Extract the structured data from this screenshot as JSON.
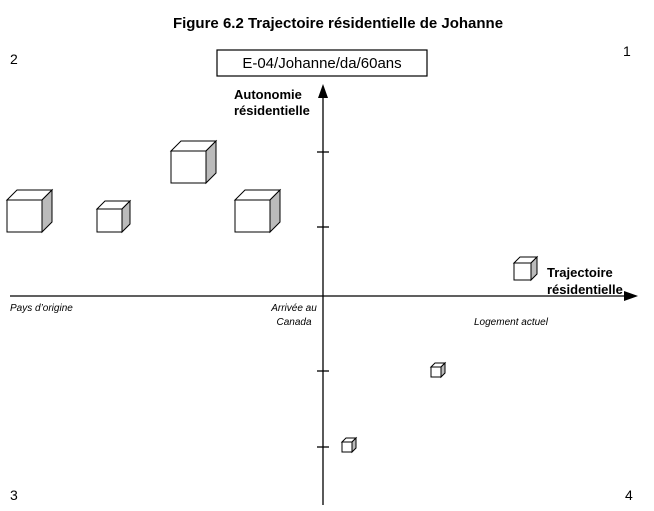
{
  "title": "Figure 6.2 Trajectoire résidentielle de Johanne",
  "case_label": "E-04/Johanne/da/60ans",
  "quadrants": {
    "q1": "1",
    "q2": "2",
    "q3": "3",
    "q4": "4"
  },
  "y_axis_label": [
    "Autonomie",
    "résidentielle"
  ],
  "x_axis_label": [
    "Trajectoire",
    "résidentielle"
  ],
  "x_points": {
    "origin": "Pays d’origine",
    "arrival": [
      "Arrivée au",
      "Canada"
    ],
    "current": "Logement actuel"
  }
}
